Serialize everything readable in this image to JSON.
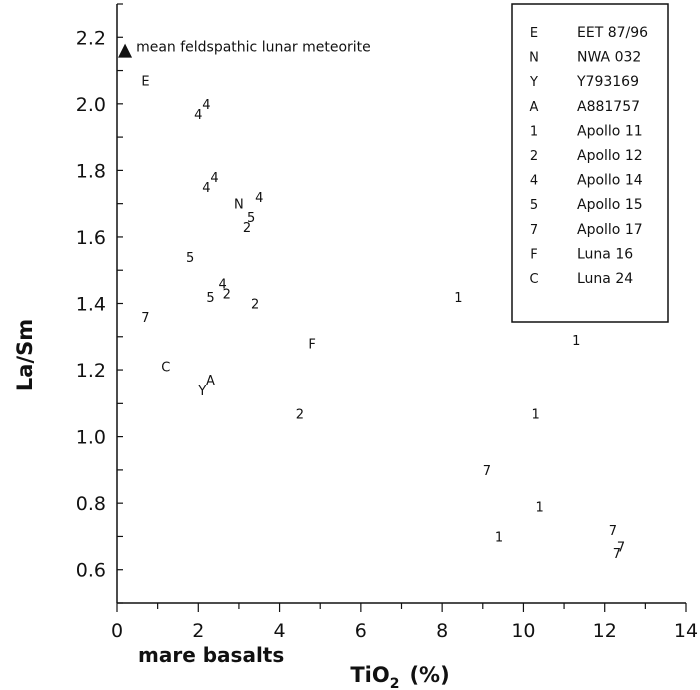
{
  "chart_data": {
    "type": "scatter",
    "xlabel": "TiO",
    "xlabel_subscript": "2",
    "xlabel_unit": "(%)",
    "ylabel": "La/Sm",
    "xlim": [
      0,
      14
    ],
    "ylim": [
      0.5,
      2.3
    ],
    "xticks": [
      0,
      2,
      4,
      6,
      8,
      10,
      12,
      14
    ],
    "yticks": [
      0.6,
      0.8,
      1.0,
      1.2,
      1.4,
      1.6,
      1.8,
      2.0,
      2.2
    ],
    "ytick_labels": [
      "0.6",
      "0.8",
      "1.0",
      "1.2",
      "1.4",
      "1.6",
      "1.8",
      "2.0",
      "2.2"
    ],
    "grid": false,
    "legend_position": "top-right",
    "legend": [
      {
        "code": "E",
        "name": "EET 87/96"
      },
      {
        "code": "N",
        "name": "NWA 032"
      },
      {
        "code": "Y",
        "name": "Y793169"
      },
      {
        "code": "A",
        "name": "A881757"
      },
      {
        "code": "1",
        "name": "Apollo 11"
      },
      {
        "code": "2",
        "name": "Apollo 12"
      },
      {
        "code": "4",
        "name": "Apollo 14"
      },
      {
        "code": "5",
        "name": "Apollo 15"
      },
      {
        "code": "7",
        "name": "Apollo 17"
      },
      {
        "code": "F",
        "name": "Luna 16"
      },
      {
        "code": "C",
        "name": "Luna 24"
      }
    ],
    "highlight_point": {
      "x": 0.1,
      "y": 2.16,
      "label": "mean feldspathic lunar meteorite"
    },
    "annotation": "mare basalts",
    "points": [
      {
        "code": "E",
        "x": 0.7,
        "y": 2.07
      },
      {
        "code": "4",
        "x": 2.0,
        "y": 1.97
      },
      {
        "code": "4",
        "x": 2.2,
        "y": 2.0
      },
      {
        "code": "4",
        "x": 2.2,
        "y": 1.75
      },
      {
        "code": "4",
        "x": 2.4,
        "y": 1.78
      },
      {
        "code": "4",
        "x": 3.5,
        "y": 1.72
      },
      {
        "code": "N",
        "x": 3.0,
        "y": 1.7
      },
      {
        "code": "5",
        "x": 3.3,
        "y": 1.66
      },
      {
        "code": "2",
        "x": 3.2,
        "y": 1.63
      },
      {
        "code": "5",
        "x": 1.8,
        "y": 1.54
      },
      {
        "code": "4",
        "x": 2.6,
        "y": 1.46
      },
      {
        "code": "2",
        "x": 2.7,
        "y": 1.43
      },
      {
        "code": "5",
        "x": 2.3,
        "y": 1.42
      },
      {
        "code": "2",
        "x": 3.4,
        "y": 1.4
      },
      {
        "code": "7",
        "x": 0.7,
        "y": 1.36
      },
      {
        "code": "1",
        "x": 8.4,
        "y": 1.42
      },
      {
        "code": "F",
        "x": 4.8,
        "y": 1.28
      },
      {
        "code": "1",
        "x": 11.3,
        "y": 1.29
      },
      {
        "code": "C",
        "x": 1.2,
        "y": 1.21
      },
      {
        "code": "A",
        "x": 2.3,
        "y": 1.17
      },
      {
        "code": "Y",
        "x": 2.1,
        "y": 1.14
      },
      {
        "code": "2",
        "x": 4.5,
        "y": 1.07
      },
      {
        "code": "1",
        "x": 10.3,
        "y": 1.07
      },
      {
        "code": "7",
        "x": 9.1,
        "y": 0.9
      },
      {
        "code": "1",
        "x": 10.4,
        "y": 0.79
      },
      {
        "code": "1",
        "x": 9.4,
        "y": 0.7
      },
      {
        "code": "7",
        "x": 12.2,
        "y": 0.72
      },
      {
        "code": "7",
        "x": 12.4,
        "y": 0.67
      },
      {
        "code": "7",
        "x": 12.3,
        "y": 0.65
      }
    ]
  }
}
